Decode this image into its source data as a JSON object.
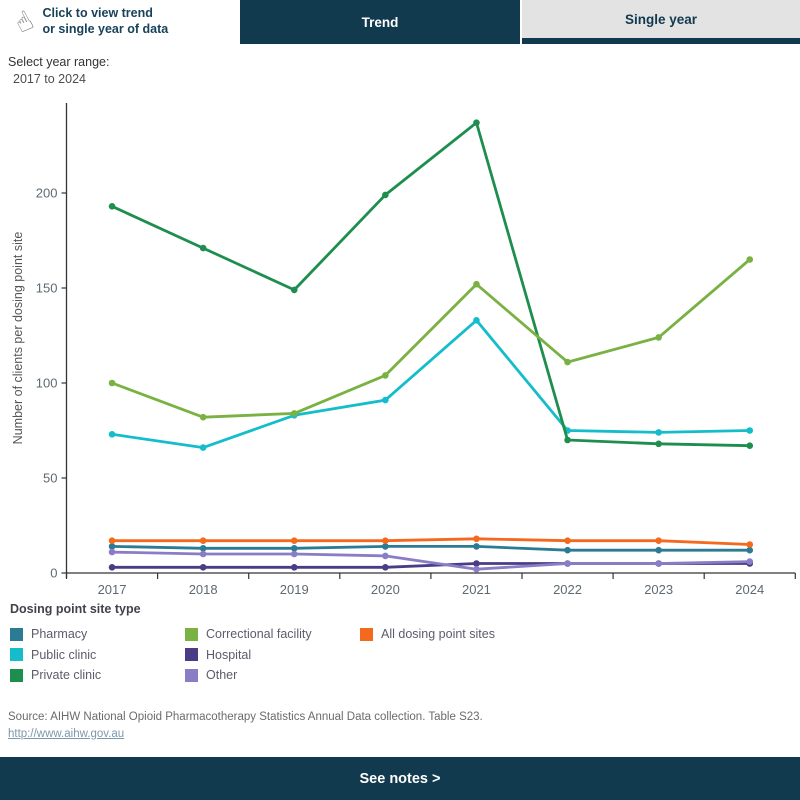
{
  "header": {
    "hint_line1": "Click to view trend",
    "hint_line2": "or single year of data",
    "tap_icon": "tap-hand-icon",
    "tabs": [
      {
        "label": "Trend",
        "active": true
      },
      {
        "label": "Single year",
        "active": false
      }
    ]
  },
  "filter": {
    "label": "Select year range:",
    "value": "2017 to 2024"
  },
  "chart_data": {
    "type": "line",
    "title": "",
    "xlabel": "",
    "ylabel": "Number of clients per dosing point site",
    "x": [
      "2017",
      "2018",
      "2019",
      "2020",
      "2021",
      "2022",
      "2023",
      "2024"
    ],
    "yticks": [
      0,
      50,
      100,
      150,
      200
    ],
    "ylim": [
      0,
      245
    ],
    "grid": false,
    "markers": true,
    "legend_position": "bottom",
    "legend_title": "Dosing point site type",
    "series": [
      {
        "name": "Pharmacy",
        "color": "#2b7b95",
        "values": [
          14,
          13,
          13,
          14,
          14,
          12,
          12,
          12
        ]
      },
      {
        "name": "Public clinic",
        "color": "#14bdc9",
        "values": [
          73,
          66,
          83,
          91,
          133,
          75,
          74,
          75
        ]
      },
      {
        "name": "Private clinic",
        "color": "#1e8e4e",
        "values": [
          193,
          171,
          149,
          199,
          237,
          70,
          68,
          67
        ]
      },
      {
        "name": "Correctional facility",
        "color": "#79b142",
        "values": [
          100,
          82,
          84,
          104,
          152,
          111,
          124,
          165
        ]
      },
      {
        "name": "Hospital",
        "color": "#4a3d85",
        "values": [
          3,
          3,
          3,
          3,
          5,
          5,
          5,
          5
        ]
      },
      {
        "name": "Other",
        "color": "#8a7dc6",
        "values": [
          11,
          10,
          10,
          9,
          2,
          5,
          5,
          6
        ]
      },
      {
        "name": "All dosing point sites",
        "color": "#f3691d",
        "values": [
          17,
          17,
          17,
          17,
          18,
          17,
          17,
          15
        ]
      }
    ]
  },
  "legend": {
    "title": "Dosing point site type",
    "columns": [
      [
        "Pharmacy",
        "Public clinic",
        "Private clinic"
      ],
      [
        "Correctional facility",
        "Hospital",
        "Other"
      ],
      [
        "All dosing point sites"
      ]
    ]
  },
  "footer": {
    "source": "Source: AIHW National Opioid Pharmacotherapy Statistics Annual Data collection. Table S23.",
    "link": "http://www.aihw.gov.au",
    "notes_label": "See notes >"
  },
  "colors": {
    "accent_dark": "#113a4e",
    "tab_inactive_bg": "#e3e3e3",
    "axis_line": "#343434",
    "tick_label": "#5d6a72",
    "axis_title": "#555555"
  }
}
